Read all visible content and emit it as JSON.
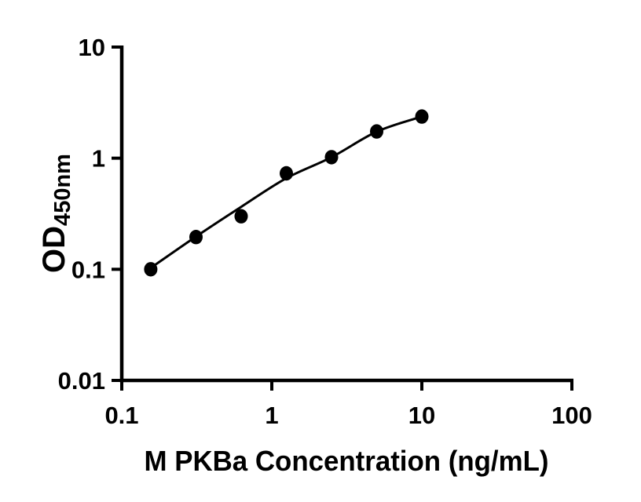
{
  "chart_data": {
    "type": "scatter",
    "subtype": "standard-curve-with-fit-line",
    "title": "",
    "xlabel": "M PKBa Concentration (ng/mL)",
    "ylabel": "OD",
    "ylabel_subscript": "450nm",
    "x_scale": "log",
    "y_scale": "log",
    "xlim": [
      0.1,
      100
    ],
    "ylim": [
      0.01,
      10
    ],
    "x_ticks": [
      {
        "value": 0.1,
        "label": "0.1"
      },
      {
        "value": 1,
        "label": "1"
      },
      {
        "value": 10,
        "label": "10"
      },
      {
        "value": 100,
        "label": "100"
      }
    ],
    "y_ticks": [
      {
        "value": 0.01,
        "label": "0.01"
      },
      {
        "value": 0.1,
        "label": "0.1"
      },
      {
        "value": 1,
        "label": "1"
      },
      {
        "value": 10,
        "label": "10"
      }
    ],
    "grid": false,
    "legend": false,
    "axis_color": "#000000",
    "marker_color": "#000000",
    "line_color": "#000000",
    "background": "#ffffff",
    "series": [
      {
        "marker": "filled-circle",
        "x": [
          0.156,
          0.3125,
          0.625,
          1.25,
          2.5,
          5,
          10
        ],
        "y": [
          0.1,
          0.195,
          0.3,
          0.73,
          1.02,
          1.74,
          2.37
        ]
      }
    ],
    "fit_curve": {
      "x": [
        0.156,
        0.3125,
        0.625,
        1.25,
        2.5,
        5,
        10
      ],
      "y": [
        0.103,
        0.197,
        0.365,
        0.66,
        1.02,
        1.73,
        2.37
      ]
    }
  }
}
